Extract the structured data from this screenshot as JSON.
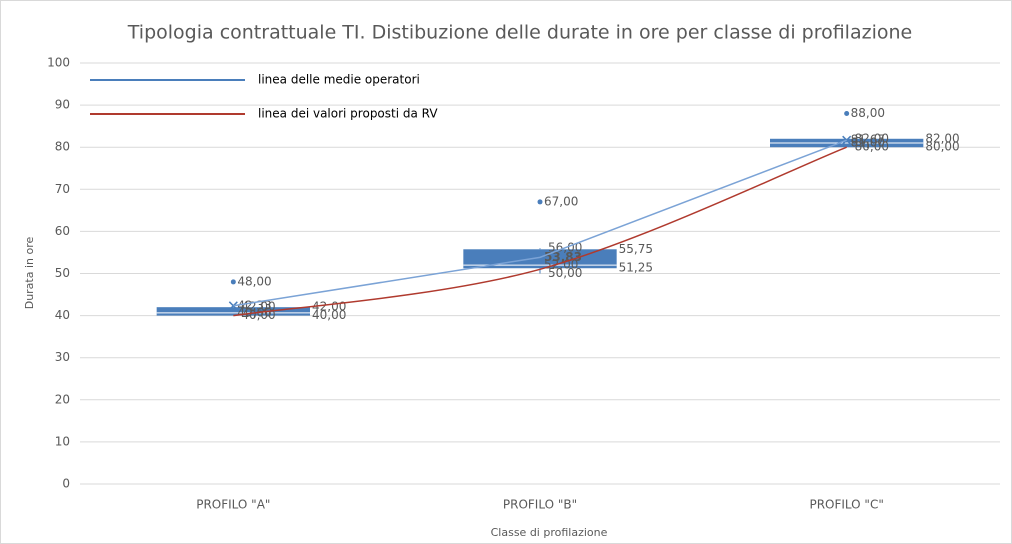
{
  "chart_data": {
    "type": "box",
    "title": "Tipologia contrattuale TI. Distibuzione delle durate in ore per classe di profilazione",
    "x_label": "Classe di profilazione",
    "y_label": "Durata in ore",
    "categories": [
      "PROFILO \"A\"",
      "PROFILO \"B\"",
      "PROFILO \"C\""
    ],
    "color": "#4a7ebb",
    "whisker_low": [
      40,
      50,
      80
    ],
    "whisker_low_labels": [
      "40,00",
      "50,00",
      "80,00"
    ],
    "q1": [
      40,
      51.25,
      80
    ],
    "q1_labels": [
      "40,00",
      "51,25",
      "80,00"
    ],
    "median": [
      40.66,
      52,
      81
    ],
    "median_labels": [
      "40,66",
      "52,00",
      "81,00"
    ],
    "q3": [
      42,
      55.75,
      82
    ],
    "q3_labels": [
      "42,00",
      "55,75",
      "82,00"
    ],
    "whisker_high": [
      42,
      56,
      82
    ],
    "whisker_high_labels": [
      "42,00",
      "56,00",
      "82,00"
    ],
    "outliers": [
      48,
      67,
      88
    ],
    "outliers_labels": [
      "48,00",
      "67,00",
      "88,00"
    ],
    "mean": [
      42.33,
      53.83,
      81.67
    ],
    "mean_labels": [
      "42,33",
      "53,83",
      "81,67"
    ],
    "lines": [
      {
        "name": "linea delle medie operatori",
        "color": "#7ba3d6",
        "legend_color": "#4a7ebb",
        "smooth": false,
        "values": [
          42.33,
          53.83,
          81.67
        ]
      },
      {
        "name": "linea dei valori proposti da RV",
        "color": "#b03a2e",
        "legend_color": "#b03a2e",
        "smooth": true,
        "values": [
          40,
          51,
          80
        ]
      }
    ],
    "ylim": [
      0,
      100
    ],
    "yticks": [
      0,
      10,
      20,
      30,
      40,
      50,
      60,
      70,
      80,
      90,
      100
    ],
    "grid": true
  }
}
